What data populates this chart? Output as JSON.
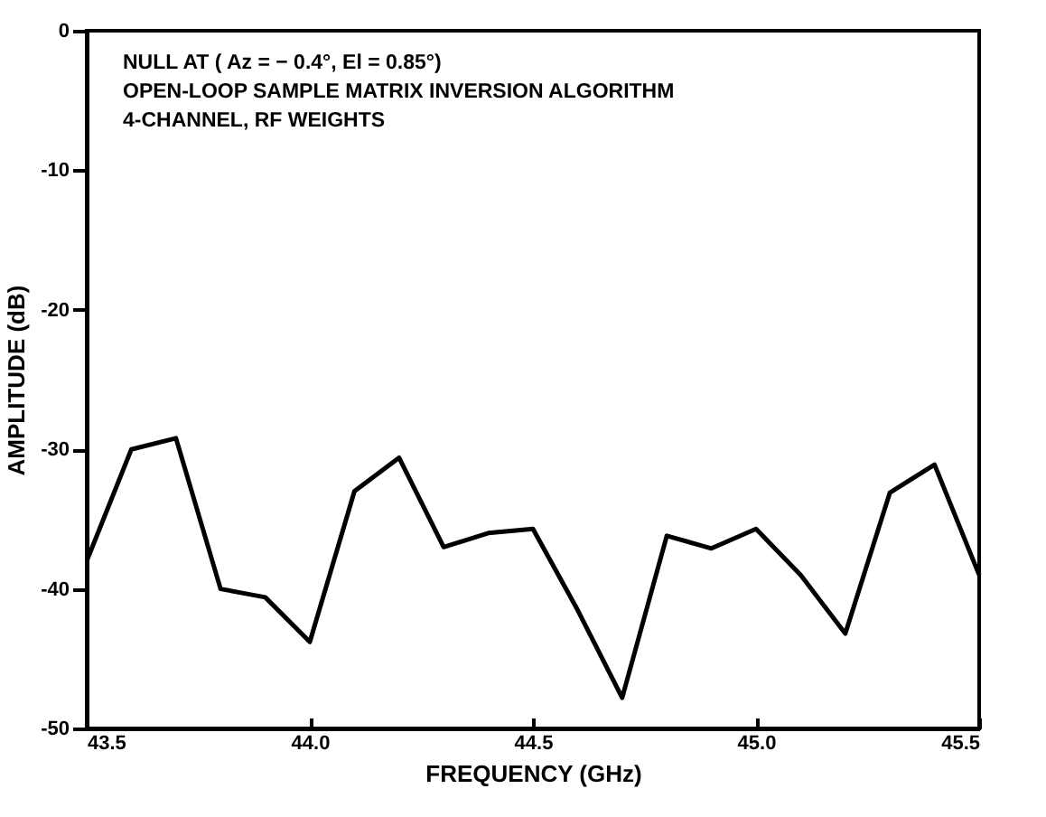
{
  "chart_data": {
    "type": "line",
    "xlabel": "FREQUENCY (GHz)",
    "ylabel": "AMPLITUDE (dB)",
    "annotations": [
      "NULL AT ( Az = − 0.4°,  El = 0.85°)",
      "OPEN-LOOP SAMPLE MATRIX INVERSION ALGORITHM",
      "4-CHANNEL, RF WEIGHTS"
    ],
    "x": [
      43.5,
      43.6,
      43.7,
      43.8,
      43.9,
      44.0,
      44.1,
      44.2,
      44.3,
      44.4,
      44.5,
      44.6,
      44.7,
      44.8,
      44.9,
      45.0,
      45.1,
      45.2,
      45.3,
      45.4,
      45.5
    ],
    "series": [
      {
        "color": "#000000",
        "values": [
          -38,
          -30,
          -29.2,
          -40,
          -40.6,
          -43.8,
          -33,
          -30.6,
          -37,
          -36,
          -35.7,
          -41.5,
          -47.8,
          -36.2,
          -37.1,
          -35.7,
          -39,
          -43.2,
          -33.1,
          -31.1,
          -39
        ]
      }
    ],
    "xlim": [
      43.5,
      45.5
    ],
    "xticks": [
      43.5,
      {
        "value": 44,
        "label": "44.0"
      },
      44.5,
      {
        "value": 45,
        "label": "45.0"
      },
      45.5
    ],
    "ylim": [
      -50,
      0
    ],
    "yticks": [
      -50,
      -40,
      -30,
      -20,
      -10,
      0
    ],
    "grid": false,
    "marker": "none",
    "line_style": "solid"
  }
}
